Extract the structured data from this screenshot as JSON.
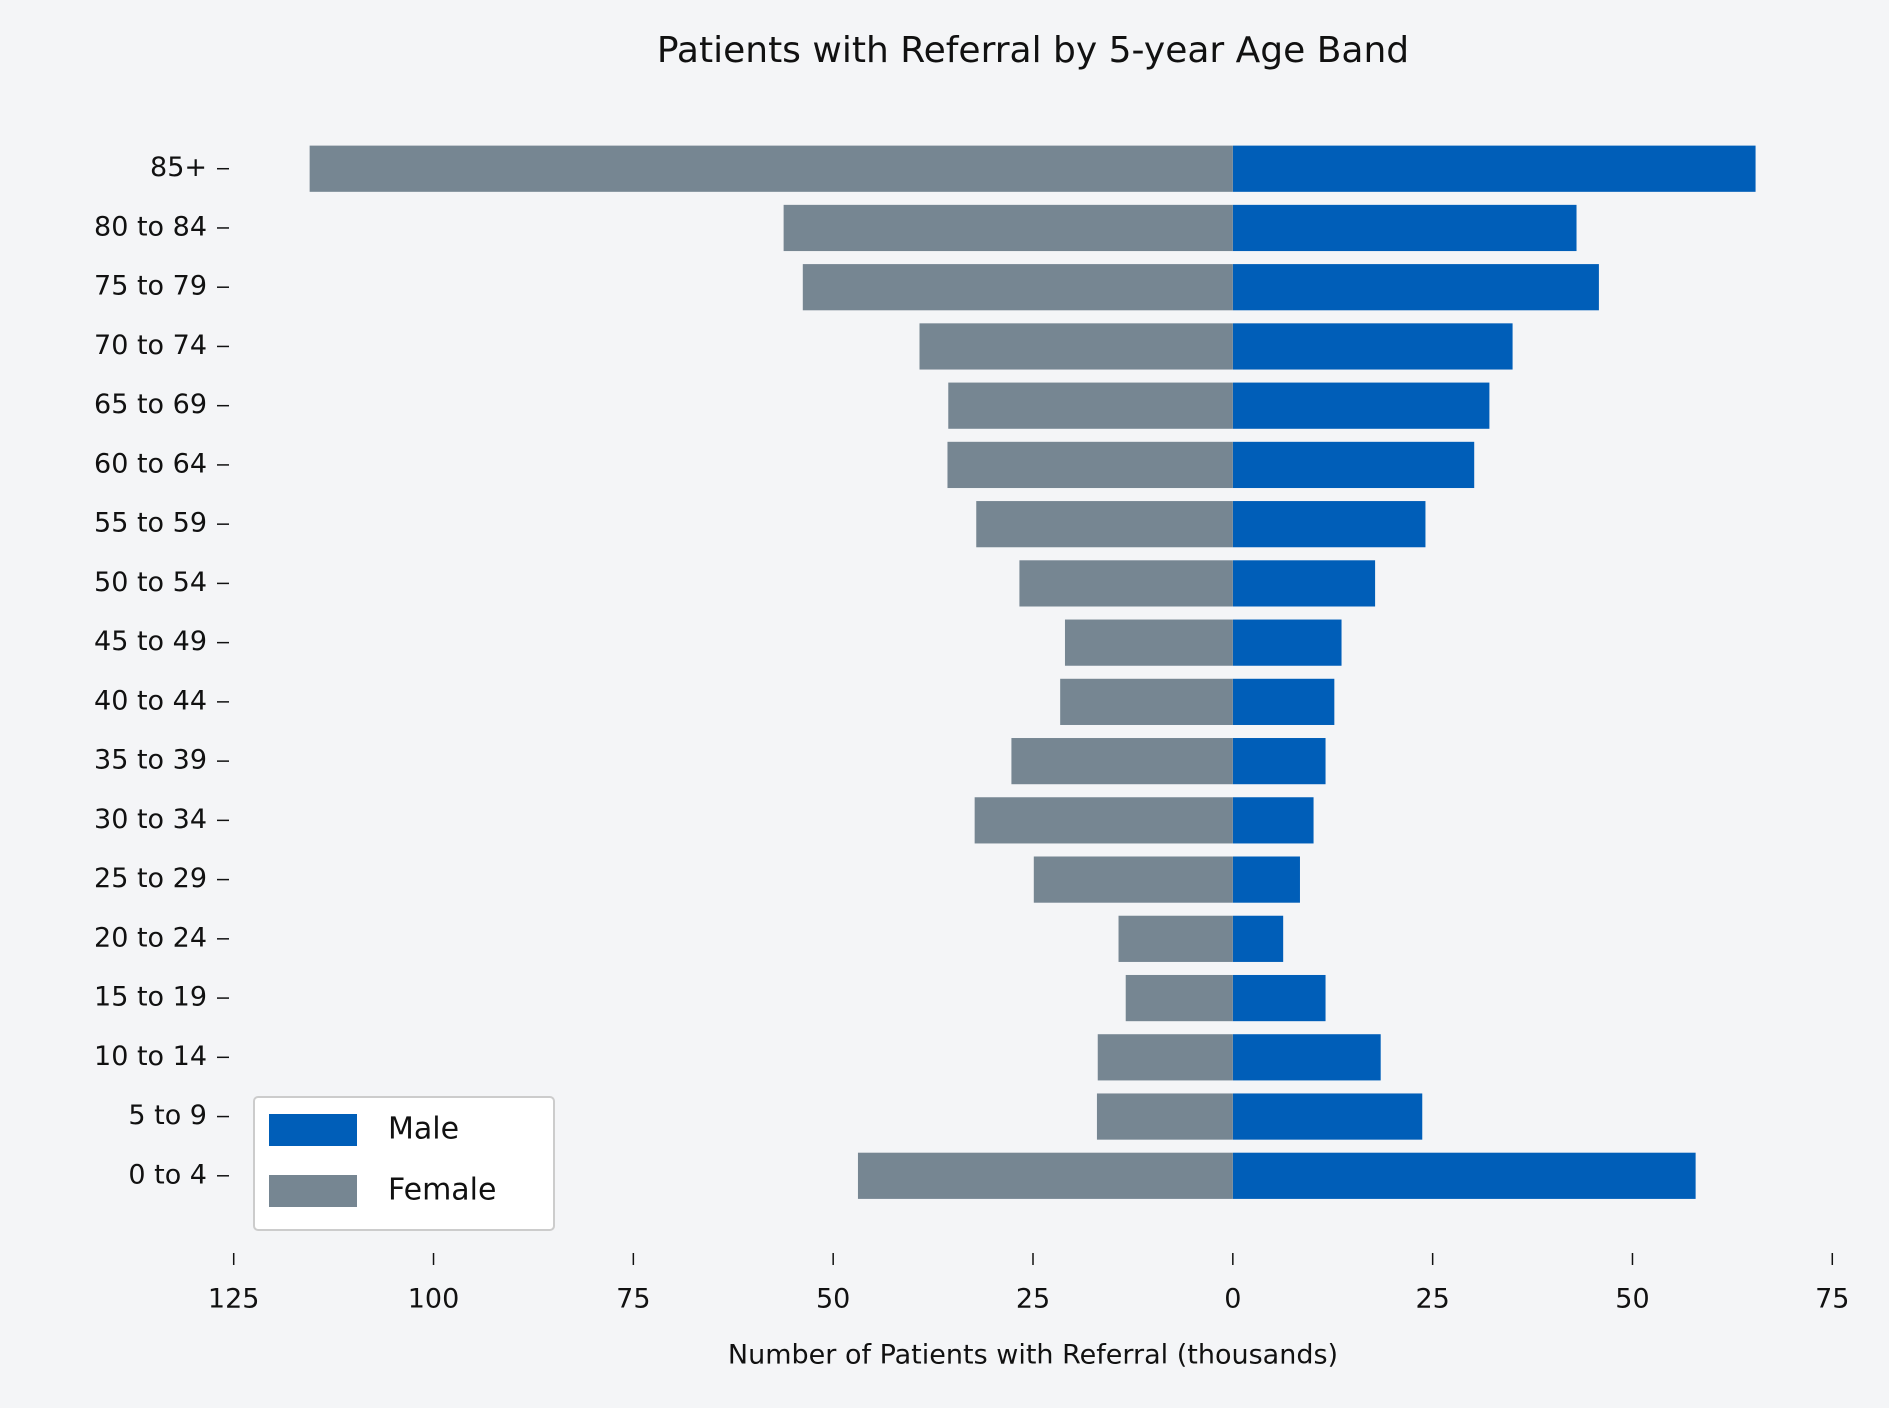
{
  "chart_data": {
    "type": "bar",
    "orientation": "horizontal",
    "stacked": "diverging",
    "title": "Patients with Referral by 5-year Age Band",
    "x_label": "Number of Patients with Referral (thousands)",
    "categories": [
      "0 to 4",
      "5 to 9",
      "10 to 14",
      "15 to 19",
      "20 to 24",
      "25 to 29",
      "30 to 34",
      "35 to 39",
      "40 to 44",
      "45 to 49",
      "50 to 54",
      "55 to 59",
      "60 to 64",
      "65 to 69",
      "70 to 74",
      "75 to 79",
      "80 to 84",
      "85+"
    ],
    "series": [
      {
        "name": "Male",
        "color": "#005eb8",
        "values": [
          57.9,
          23.7,
          18.5,
          11.6,
          6.3,
          8.4,
          10.1,
          11.6,
          12.7,
          13.6,
          17.8,
          24.1,
          30.2,
          32.1,
          35.0,
          45.8,
          43.0,
          65.4
        ]
      },
      {
        "name": "Female",
        "color": "#768692",
        "values": [
          -46.9,
          -17.0,
          -16.9,
          -13.4,
          -14.3,
          -24.9,
          -32.3,
          -27.7,
          -21.6,
          -21.0,
          -26.7,
          -32.1,
          -35.7,
          -35.6,
          -39.2,
          -53.8,
          -56.2,
          -115.5
        ]
      }
    ],
    "xlim": [
      -125,
      75
    ],
    "xticks": [
      {
        "value": -125,
        "label": "125"
      },
      {
        "value": -100,
        "label": "100"
      },
      {
        "value": -75,
        "label": "75"
      },
      {
        "value": -50,
        "label": "50"
      },
      {
        "value": -25,
        "label": "25"
      },
      0,
      25,
      50,
      75
    ],
    "legend": "lower left",
    "grid": false
  }
}
